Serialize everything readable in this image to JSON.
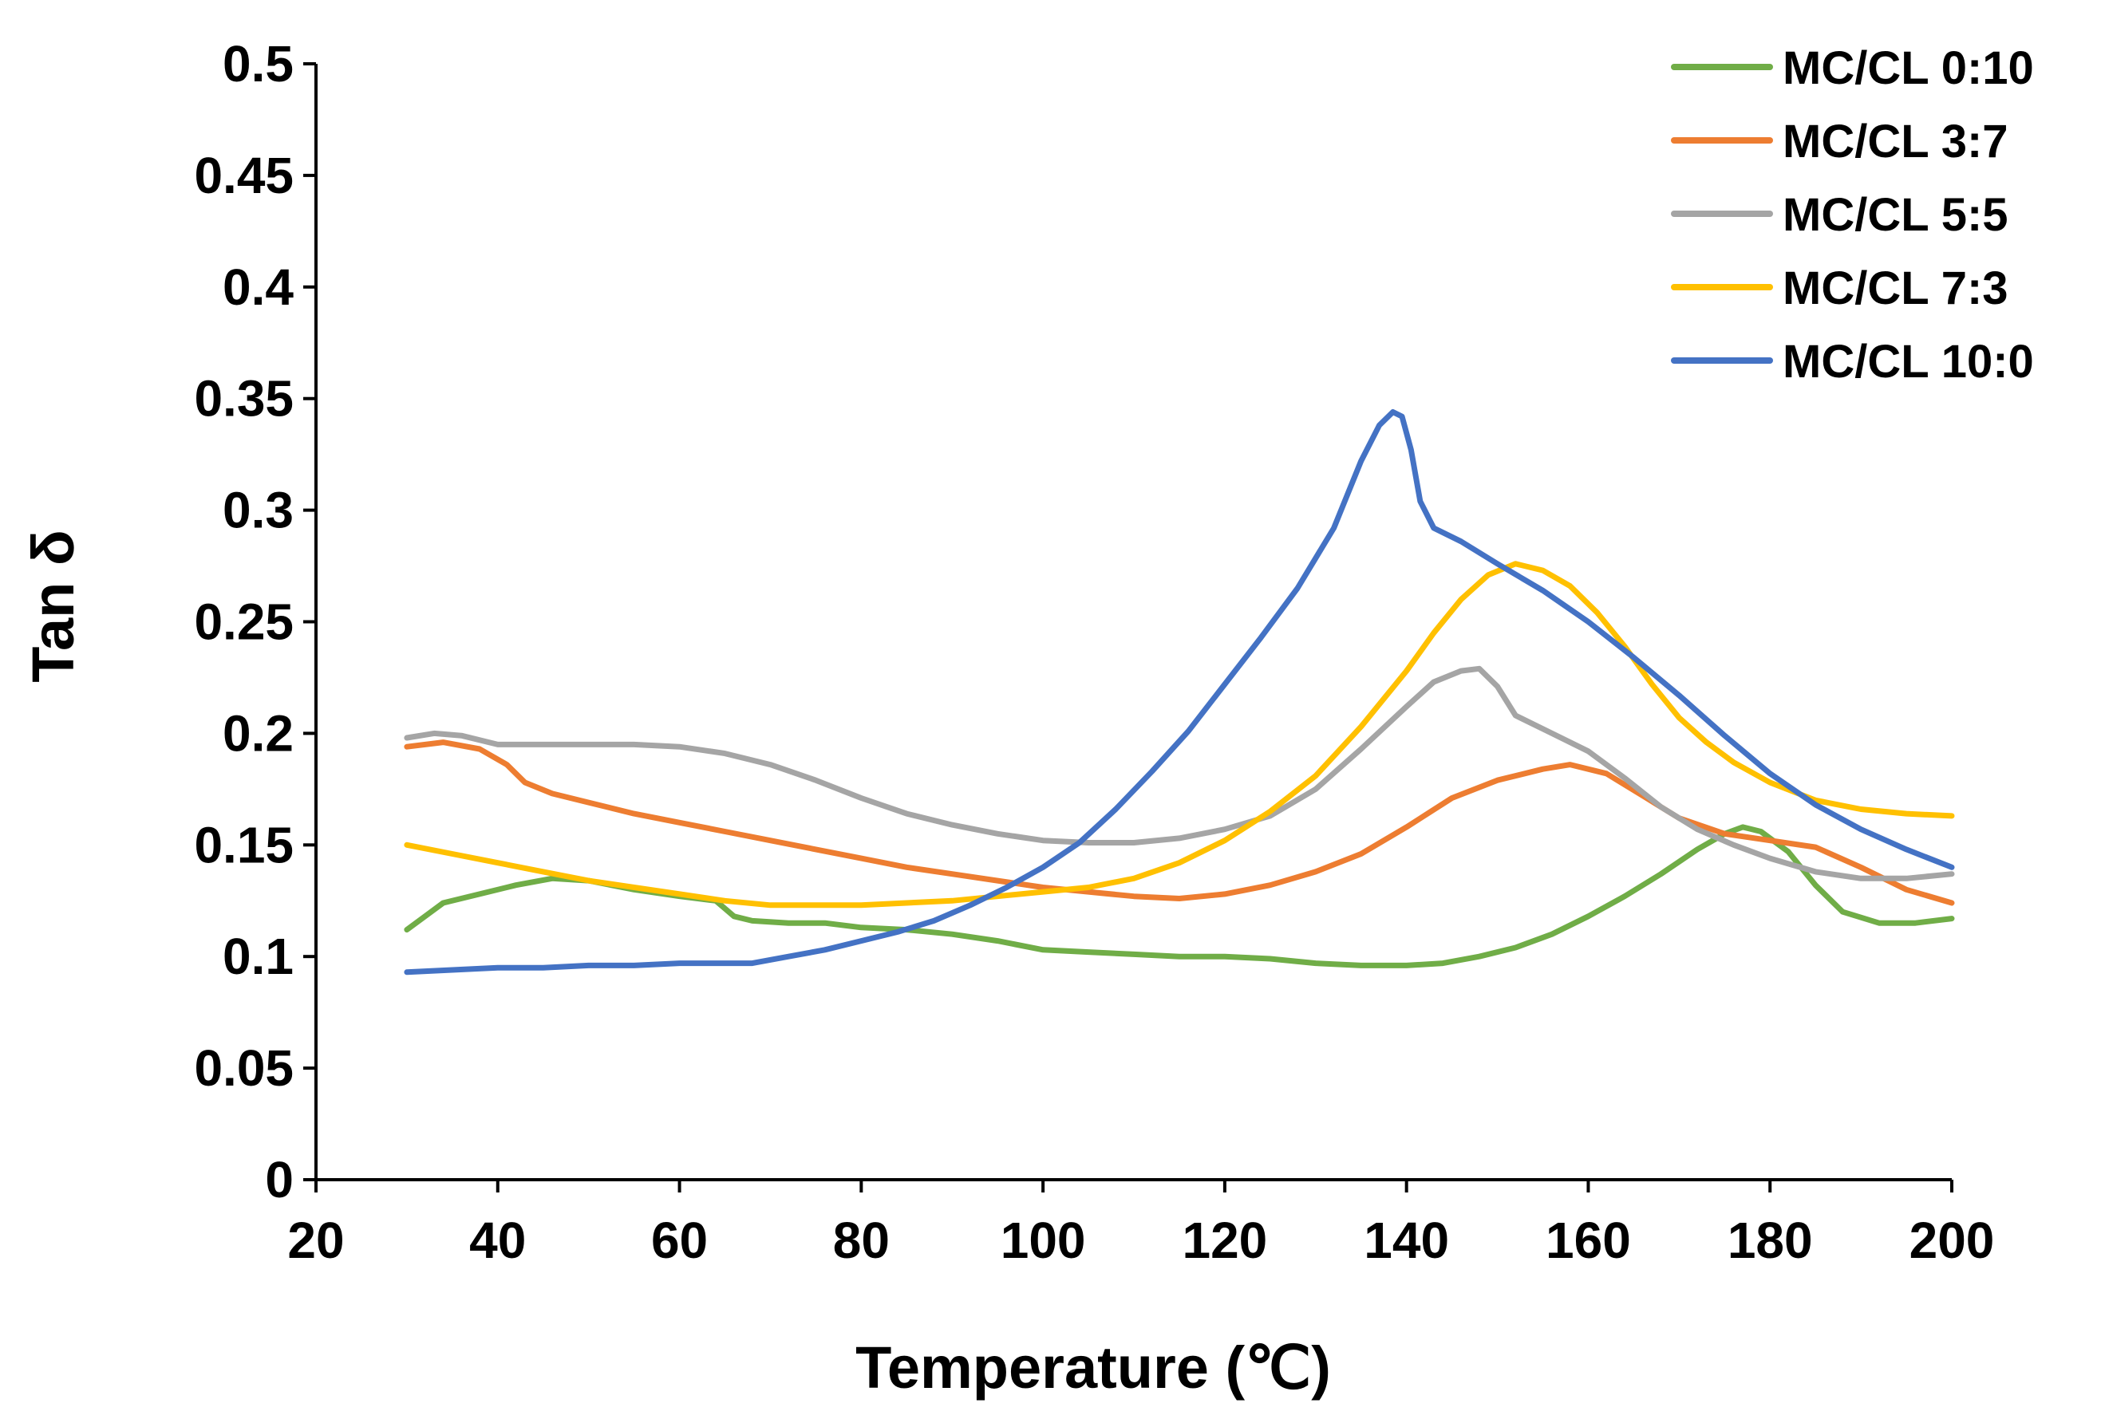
{
  "chart_data": {
    "type": "line",
    "xlabel": "Temperature (℃)",
    "ylabel": "Tan δ",
    "xlim": [
      20,
      200
    ],
    "ylim": [
      0,
      0.5
    ],
    "xticks": [
      "20",
      "40",
      "60",
      "80",
      "100",
      "120",
      "140",
      "160",
      "180",
      "200"
    ],
    "yticks": [
      "0",
      "0.05",
      "0.1",
      "0.15",
      "0.2",
      "0.25",
      "0.3",
      "0.35",
      "0.4",
      "0.45",
      "0.5"
    ],
    "grid": false,
    "legend_position": "top-right",
    "series": [
      {
        "name": "MC/CL 0:10",
        "color": "#70AD47",
        "x": [
          30,
          34,
          38,
          42,
          46,
          50,
          55,
          60,
          64,
          66,
          68,
          72,
          76,
          80,
          85,
          90,
          95,
          100,
          105,
          110,
          115,
          120,
          125,
          130,
          135,
          140,
          144,
          148,
          152,
          156,
          160,
          164,
          168,
          172,
          175,
          177,
          179,
          182,
          185,
          188,
          192,
          196,
          200
        ],
        "y": [
          0.112,
          0.124,
          0.128,
          0.132,
          0.135,
          0.134,
          0.13,
          0.127,
          0.125,
          0.118,
          0.116,
          0.115,
          0.115,
          0.113,
          0.112,
          0.11,
          0.107,
          0.103,
          0.102,
          0.101,
          0.1,
          0.1,
          0.099,
          0.097,
          0.096,
          0.096,
          0.097,
          0.1,
          0.104,
          0.11,
          0.118,
          0.127,
          0.137,
          0.148,
          0.155,
          0.158,
          0.156,
          0.147,
          0.132,
          0.12,
          0.115,
          0.115,
          0.117
        ]
      },
      {
        "name": "MC/CL 3:7",
        "color": "#ED7D31",
        "x": [
          30,
          34,
          38,
          41,
          43,
          46,
          50,
          55,
          60,
          65,
          70,
          75,
          80,
          85,
          90,
          95,
          100,
          105,
          110,
          115,
          120,
          125,
          130,
          135,
          140,
          145,
          150,
          155,
          158,
          162,
          166,
          170,
          175,
          180,
          185,
          190,
          195,
          200
        ],
        "y": [
          0.194,
          0.196,
          0.193,
          0.186,
          0.178,
          0.173,
          0.169,
          0.164,
          0.16,
          0.156,
          0.152,
          0.148,
          0.144,
          0.14,
          0.137,
          0.134,
          0.131,
          0.129,
          0.127,
          0.126,
          0.128,
          0.132,
          0.138,
          0.146,
          0.158,
          0.171,
          0.179,
          0.184,
          0.186,
          0.182,
          0.172,
          0.162,
          0.155,
          0.152,
          0.149,
          0.14,
          0.13,
          0.124
        ]
      },
      {
        "name": "MC/CL 5:5",
        "color": "#A5A5A5",
        "x": [
          30,
          33,
          36,
          40,
          45,
          50,
          55,
          60,
          65,
          70,
          75,
          80,
          85,
          90,
          95,
          100,
          105,
          110,
          115,
          120,
          125,
          130,
          135,
          140,
          143,
          146,
          148,
          150,
          152,
          156,
          160,
          164,
          168,
          172,
          176,
          180,
          185,
          190,
          195,
          200
        ],
        "y": [
          0.198,
          0.2,
          0.199,
          0.195,
          0.195,
          0.195,
          0.195,
          0.194,
          0.191,
          0.186,
          0.179,
          0.171,
          0.164,
          0.159,
          0.155,
          0.152,
          0.151,
          0.151,
          0.153,
          0.157,
          0.163,
          0.175,
          0.193,
          0.212,
          0.223,
          0.228,
          0.229,
          0.221,
          0.208,
          0.2,
          0.192,
          0.18,
          0.167,
          0.157,
          0.15,
          0.144,
          0.138,
          0.135,
          0.135,
          0.137
        ]
      },
      {
        "name": "MC/CL 7:3",
        "color": "#FFC000",
        "x": [
          30,
          35,
          40,
          45,
          50,
          55,
          60,
          65,
          70,
          75,
          80,
          85,
          90,
          95,
          100,
          105,
          110,
          115,
          120,
          125,
          130,
          135,
          140,
          143,
          146,
          149,
          152,
          155,
          158,
          161,
          164,
          167,
          170,
          173,
          176,
          180,
          185,
          190,
          195,
          200
        ],
        "y": [
          0.15,
          0.146,
          0.142,
          0.138,
          0.134,
          0.131,
          0.128,
          0.125,
          0.123,
          0.123,
          0.123,
          0.124,
          0.125,
          0.127,
          0.129,
          0.131,
          0.135,
          0.142,
          0.152,
          0.165,
          0.181,
          0.203,
          0.228,
          0.245,
          0.26,
          0.271,
          0.276,
          0.273,
          0.266,
          0.254,
          0.239,
          0.222,
          0.207,
          0.196,
          0.187,
          0.178,
          0.17,
          0.166,
          0.164,
          0.163
        ]
      },
      {
        "name": "MC/CL 10:0",
        "color": "#4472C4",
        "x": [
          30,
          35,
          40,
          45,
          50,
          55,
          60,
          65,
          68,
          72,
          76,
          80,
          84,
          88,
          92,
          96,
          100,
          104,
          108,
          112,
          116,
          120,
          124,
          128,
          132,
          135,
          137,
          138.5,
          139.5,
          140.5,
          141.5,
          143,
          146,
          150,
          155,
          160,
          165,
          170,
          175,
          180,
          185,
          190,
          195,
          200
        ],
        "y": [
          0.093,
          0.094,
          0.095,
          0.095,
          0.096,
          0.096,
          0.097,
          0.097,
          0.097,
          0.1,
          0.103,
          0.107,
          0.111,
          0.116,
          0.123,
          0.131,
          0.14,
          0.151,
          0.166,
          0.183,
          0.201,
          0.222,
          0.243,
          0.265,
          0.292,
          0.322,
          0.338,
          0.344,
          0.342,
          0.327,
          0.304,
          0.292,
          0.286,
          0.276,
          0.264,
          0.25,
          0.234,
          0.217,
          0.199,
          0.182,
          0.168,
          0.157,
          0.148,
          0.14
        ]
      }
    ]
  }
}
